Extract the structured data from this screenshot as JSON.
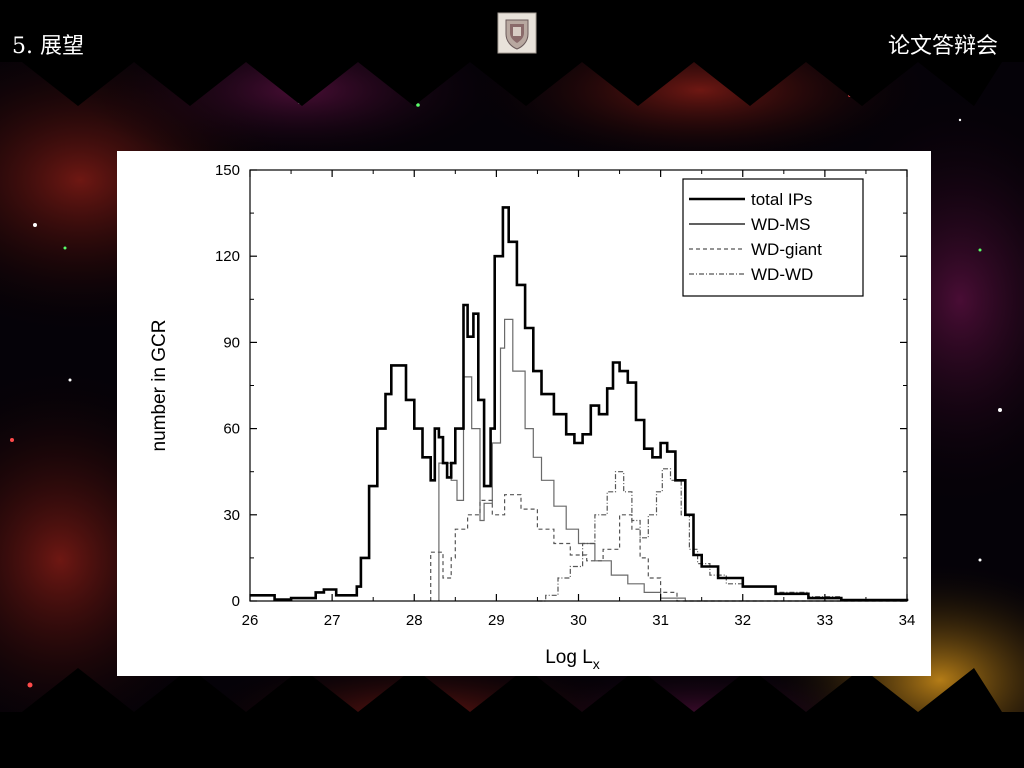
{
  "header": {
    "title": "5. 展望",
    "tag": "论文答辩会"
  },
  "colors": {
    "background": "#000000",
    "panel": "#ffffff",
    "ink": "#000000"
  },
  "chart_data": {
    "type": "line",
    "title": "",
    "xlabel": "Log L",
    "xlabel_sub": "x",
    "ylabel": "number in GCR",
    "xlim": [
      26,
      34
    ],
    "ylim": [
      0,
      150
    ],
    "xticks": [
      26,
      27,
      28,
      29,
      30,
      31,
      32,
      33,
      34
    ],
    "yticks": [
      0,
      30,
      60,
      90,
      120,
      150
    ],
    "grid": false,
    "legend_position": "top-right",
    "series": [
      {
        "name": "total IPs",
        "style": "thick-solid",
        "points": [
          [
            26,
            2
          ],
          [
            26.3,
            0.5
          ],
          [
            26.5,
            1
          ],
          [
            26.8,
            3
          ],
          [
            26.9,
            4
          ],
          [
            27.05,
            2
          ],
          [
            27.2,
            2
          ],
          [
            27.3,
            5
          ],
          [
            27.35,
            15
          ],
          [
            27.45,
            40
          ],
          [
            27.55,
            60
          ],
          [
            27.65,
            72
          ],
          [
            27.72,
            82
          ],
          [
            27.8,
            82
          ],
          [
            27.9,
            70
          ],
          [
            28.0,
            60
          ],
          [
            28.1,
            50
          ],
          [
            28.2,
            42
          ],
          [
            28.25,
            60
          ],
          [
            28.3,
            57
          ],
          [
            28.35,
            48
          ],
          [
            28.4,
            43
          ],
          [
            28.45,
            48
          ],
          [
            28.5,
            60
          ],
          [
            28.6,
            103
          ],
          [
            28.65,
            92
          ],
          [
            28.72,
            100
          ],
          [
            28.78,
            70
          ],
          [
            28.85,
            40
          ],
          [
            28.93,
            60
          ],
          [
            28.98,
            120
          ],
          [
            29.08,
            137
          ],
          [
            29.15,
            125
          ],
          [
            29.25,
            110
          ],
          [
            29.35,
            95
          ],
          [
            29.45,
            80
          ],
          [
            29.55,
            72
          ],
          [
            29.7,
            65
          ],
          [
            29.85,
            58
          ],
          [
            29.95,
            55
          ],
          [
            30.05,
            58
          ],
          [
            30.15,
            68
          ],
          [
            30.25,
            65
          ],
          [
            30.35,
            74
          ],
          [
            30.42,
            83
          ],
          [
            30.5,
            80
          ],
          [
            30.6,
            76
          ],
          [
            30.7,
            63
          ],
          [
            30.8,
            53
          ],
          [
            30.9,
            50
          ],
          [
            31.0,
            55
          ],
          [
            31.08,
            52
          ],
          [
            31.18,
            42
          ],
          [
            31.3,
            30
          ],
          [
            31.4,
            16
          ],
          [
            31.5,
            12
          ],
          [
            31.7,
            8
          ],
          [
            32.0,
            5
          ],
          [
            32.4,
            2.5
          ],
          [
            32.8,
            1
          ],
          [
            33.2,
            0.3
          ],
          [
            34,
            0
          ]
        ]
      },
      {
        "name": "WD-MS",
        "style": "thin-solid",
        "points": [
          [
            28.3,
            0
          ],
          [
            28.3,
            48
          ],
          [
            28.45,
            42
          ],
          [
            28.52,
            35
          ],
          [
            28.6,
            78
          ],
          [
            28.7,
            60
          ],
          [
            28.8,
            28
          ],
          [
            28.85,
            34
          ],
          [
            28.95,
            55
          ],
          [
            29.05,
            88
          ],
          [
            29.1,
            98
          ],
          [
            29.2,
            80
          ],
          [
            29.35,
            60
          ],
          [
            29.45,
            50
          ],
          [
            29.55,
            42
          ],
          [
            29.7,
            33
          ],
          [
            29.85,
            25
          ],
          [
            30.0,
            20
          ],
          [
            30.2,
            14
          ],
          [
            30.4,
            9
          ],
          [
            30.6,
            6
          ],
          [
            30.8,
            3
          ],
          [
            31.0,
            1
          ],
          [
            31.3,
            0
          ],
          [
            34,
            0
          ]
        ]
      },
      {
        "name": "WD-giant",
        "style": "dashed",
        "points": [
          [
            28.2,
            0
          ],
          [
            28.2,
            17
          ],
          [
            28.35,
            8
          ],
          [
            28.45,
            15
          ],
          [
            28.5,
            25
          ],
          [
            28.65,
            30
          ],
          [
            28.8,
            35
          ],
          [
            28.95,
            30
          ],
          [
            29.1,
            37
          ],
          [
            29.3,
            32
          ],
          [
            29.5,
            25
          ],
          [
            29.7,
            20
          ],
          [
            29.9,
            16
          ],
          [
            30.1,
            14
          ],
          [
            30.3,
            18
          ],
          [
            30.5,
            30
          ],
          [
            30.65,
            25
          ],
          [
            30.75,
            15
          ],
          [
            30.85,
            8
          ],
          [
            31.0,
            3
          ],
          [
            31.2,
            0
          ],
          [
            34,
            0
          ]
        ]
      },
      {
        "name": "WD-WD",
        "style": "dash-dot",
        "points": [
          [
            29.5,
            0
          ],
          [
            29.6,
            2
          ],
          [
            29.75,
            8
          ],
          [
            29.9,
            12
          ],
          [
            30.05,
            20
          ],
          [
            30.2,
            30
          ],
          [
            30.35,
            38
          ],
          [
            30.45,
            45
          ],
          [
            30.55,
            38
          ],
          [
            30.65,
            28
          ],
          [
            30.75,
            22
          ],
          [
            30.85,
            30
          ],
          [
            30.95,
            38
          ],
          [
            31.02,
            46
          ],
          [
            31.12,
            42
          ],
          [
            31.25,
            30
          ],
          [
            31.35,
            18
          ],
          [
            31.45,
            13
          ],
          [
            31.6,
            9
          ],
          [
            31.8,
            6
          ],
          [
            32.0,
            5
          ],
          [
            32.4,
            3
          ],
          [
            32.8,
            1.5
          ],
          [
            33.2,
            0.5
          ],
          [
            33.6,
            0.1
          ],
          [
            34,
            0
          ]
        ]
      }
    ]
  }
}
